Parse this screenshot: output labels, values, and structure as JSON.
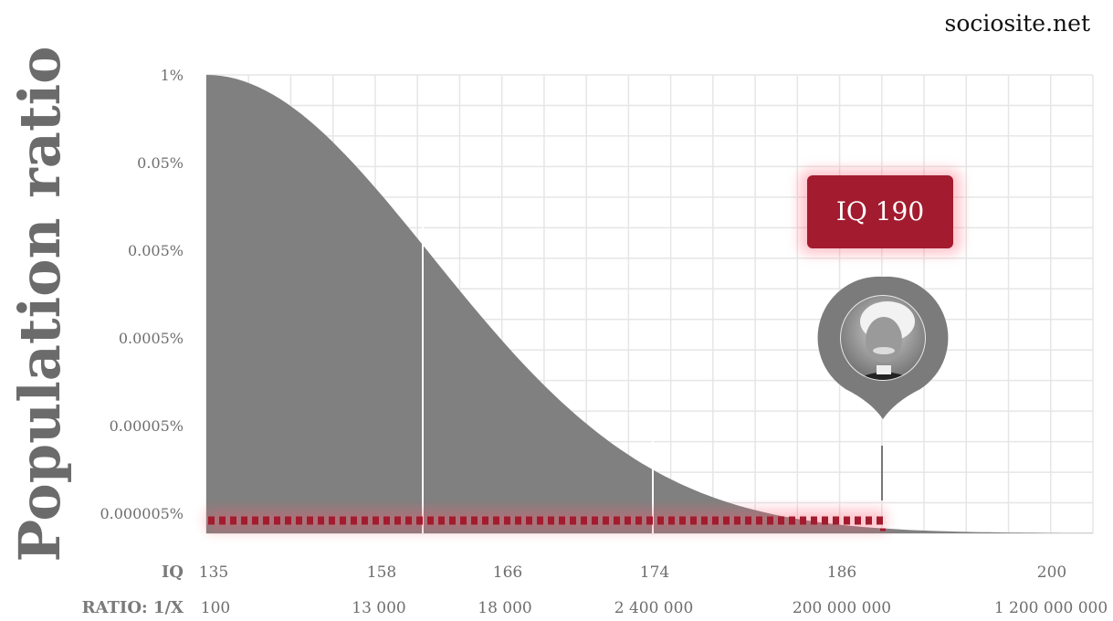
{
  "site": "sociosite.net",
  "accent_color": "#a31b2e",
  "area_color": "#808080",
  "chart_data": {
    "type": "area",
    "title": "",
    "xlabel": "",
    "ylabel": "Population ratio",
    "y_scale": "log",
    "grid": true,
    "y_ticks": [
      "1%",
      "0.05%",
      "0.005%",
      "0.0005%",
      "0.00005%",
      "0.000005%"
    ],
    "iq_axis_label": "IQ",
    "ratio_axis_label": "RATIO: 1/X",
    "iq_ticks": [
      "135",
      "158",
      "166",
      "174",
      "186",
      "200"
    ],
    "ratio_ticks": [
      "100",
      "13 000",
      "18 000",
      "2 400 000",
      "200 000 000",
      "1 200 000 000"
    ],
    "highlight": {
      "label": "IQ 190",
      "iq": 190
    }
  }
}
